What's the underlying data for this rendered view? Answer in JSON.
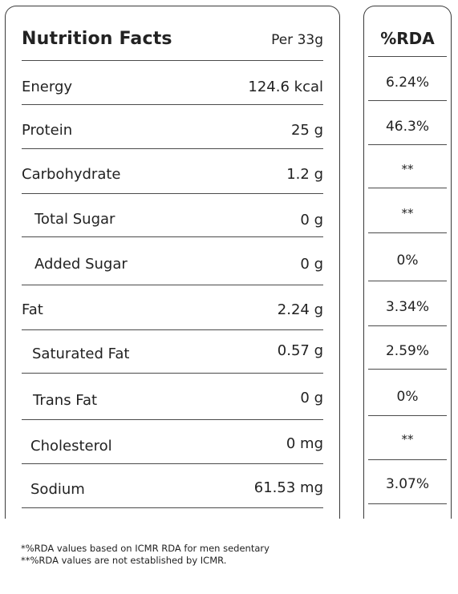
{
  "header": {
    "title": "Nutrition Facts",
    "serving": "Per 33g",
    "rda_title": "%RDA"
  },
  "rows": [
    {
      "label": "Energy",
      "value": "124.6 kcal",
      "rda": "6.24%"
    },
    {
      "label": "Protein",
      "value": "25 g",
      "rda": "46.3%"
    },
    {
      "label": "Carbohydrate",
      "value": "1.2 g",
      "rda": "**"
    },
    {
      "label": "Total Sugar",
      "value": "0 g",
      "rda": "**"
    },
    {
      "label": "Added Sugar",
      "value": "0 g",
      "rda": "0%"
    },
    {
      "label": "Fat",
      "value": "2.24 g",
      "rda": "3.34%"
    },
    {
      "label": "Saturated Fat",
      "value": "0.57 g",
      "rda": "2.59%"
    },
    {
      "label": "Trans Fat",
      "value": "0 g",
      "rda": "0%"
    },
    {
      "label": "Cholesterol",
      "value": "0 mg",
      "rda": "**"
    },
    {
      "label": "Sodium",
      "value": "61.53 mg",
      "rda": "3.07%"
    }
  ],
  "footnotes": [
    "*%RDA values based on ICMR RDA for men sedentary",
    "**%RDA values are not established by ICMR."
  ]
}
